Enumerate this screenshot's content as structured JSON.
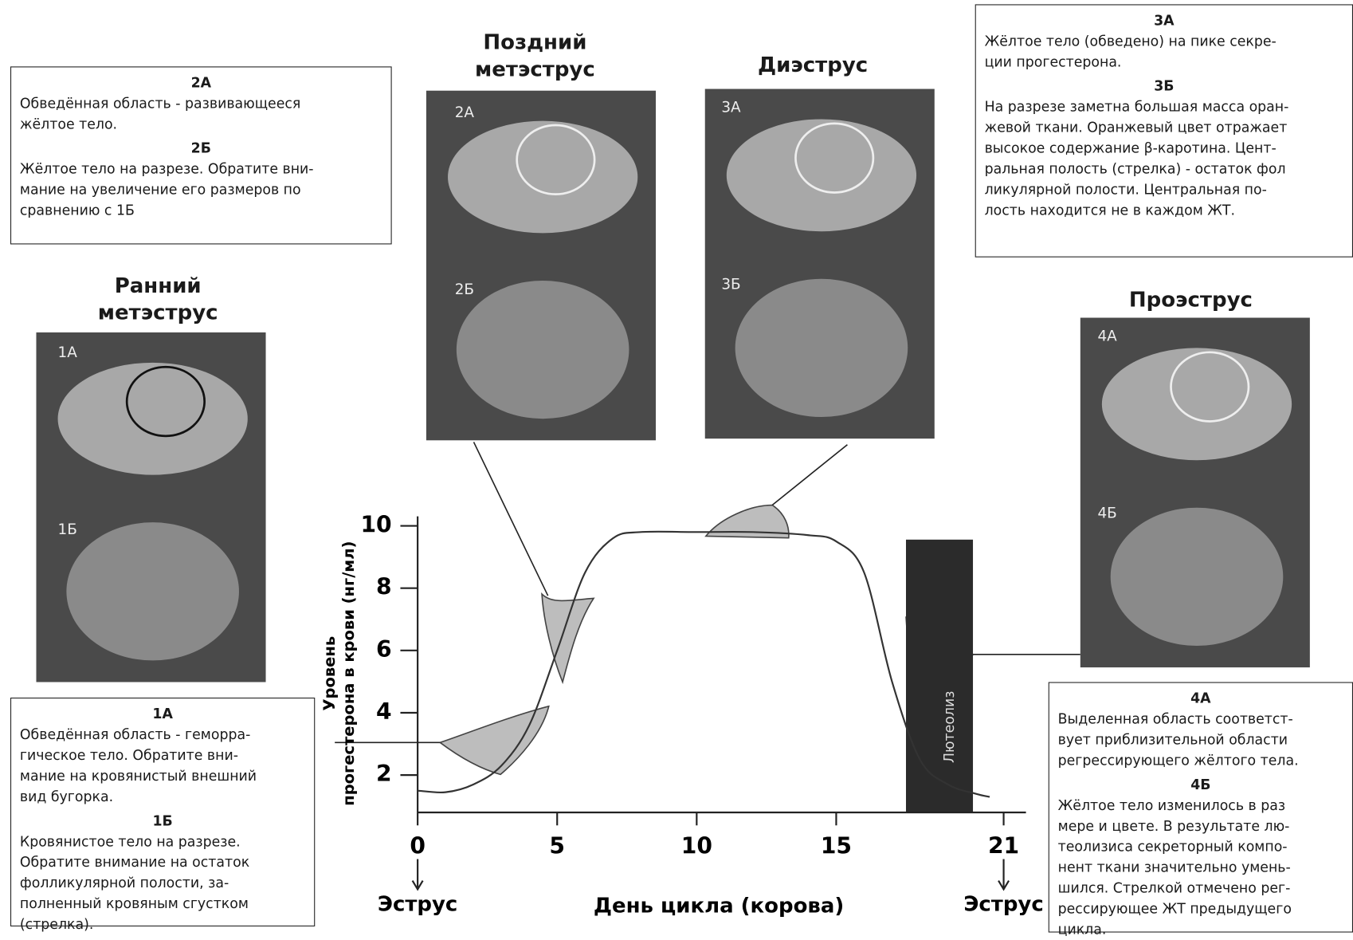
{
  "chart_data": {
    "type": "line",
    "xlabel": "День цикла (корова)",
    "ylabel": [
      "Уровень",
      "прогестерона в крови (нг/мл)"
    ],
    "x": [
      0,
      1,
      2,
      3,
      4,
      5,
      6,
      7,
      8,
      10,
      12,
      14,
      15,
      16,
      17,
      18,
      19,
      20,
      20.5
    ],
    "values": [
      1.5,
      1.45,
      1.7,
      2.3,
      3.6,
      6.0,
      8.5,
      9.6,
      9.8,
      9.8,
      9.8,
      9.7,
      9.5,
      8.5,
      5.0,
      2.5,
      1.7,
      1.4,
      1.3
    ],
    "color": "#333333",
    "xlim": [
      0,
      21.8
    ],
    "ylim": [
      0.8,
      10.5
    ],
    "xticks": [
      0,
      5,
      10,
      15,
      21
    ],
    "yticks": [
      2,
      4,
      6,
      8,
      10
    ],
    "annotations": [
      {
        "text": "Эструс",
        "x": 0
      },
      {
        "text": "Эструс",
        "x": 21
      }
    ],
    "shaded_region": {
      "label": "Лютеолиз",
      "start": 17.5,
      "end": 19.9,
      "color": "#2b2b2b"
    },
    "stages": [
      {
        "title": [
          "Ранний",
          "метэструс"
        ],
        "photo_labels": [
          "1А",
          "1Б"
        ],
        "notes": [
          {
            "heading": "1А",
            "lines": [
              "Обведённая область - геморра-",
              "гическое тело. Обратите вни-",
              "мание на кровянистый внешний",
              "вид бугорка."
            ]
          },
          {
            "heading": "1Б",
            "lines": [
              "Кровянистое тело на разрезе.",
              "Обратите внимание на остаток",
              "фолликулярной полости, за-",
              "полненный кровяным сгустком",
              "(стрелка)."
            ]
          }
        ]
      },
      {
        "title": [
          "Поздний",
          "метэструс"
        ],
        "photo_labels": [
          "2А",
          "2Б"
        ],
        "notes": [
          {
            "heading": "2А",
            "lines": [
              "Обведённая область - развивающееся",
              "жёлтое тело."
            ]
          },
          {
            "heading": "2Б",
            "lines": [
              "Жёлтое тело на разрезе. Обратите вни-",
              "мание на увеличение его размеров по",
              "сравнению с 1Б"
            ]
          }
        ]
      },
      {
        "title": [
          "Диэструс"
        ],
        "photo_labels": [
          "3А",
          "3Б"
        ],
        "notes": [
          {
            "heading": "3А",
            "lines": [
              "Жёлтое тело (обведено) на пике секре-",
              "ции прогестерона."
            ]
          },
          {
            "heading": "3Б",
            "lines": [
              "На разрезе заметна большая масса оран-",
              "жевой ткани. Оранжевый цвет отражает",
              "высокое содержание β-каротина. Цент-",
              "ральная полость (стрелка) - остаток фол",
              "ликулярной полости. Центральная по-",
              "лость находится не в каждом ЖТ."
            ]
          }
        ]
      },
      {
        "title": [
          "Проэструс"
        ],
        "photo_labels": [
          "4А",
          "4Б"
        ],
        "notes": [
          {
            "heading": "4А",
            "lines": [
              "Выделенная область соответст-",
              "вует приблизительной области",
              "регрессирующего жёлтого тела."
            ]
          },
          {
            "heading": "4Б",
            "lines": [
              "Жёлтое тело изменилось в раз",
              "мере и цвете. В результате лю-",
              "теолизиса секреторный компо-",
              "нент ткани значительно умень-",
              "шился. Стрелкой отмечено рег-",
              "рессирующее ЖТ предыдущего",
              "цикла."
            ]
          }
        ]
      }
    ]
  }
}
